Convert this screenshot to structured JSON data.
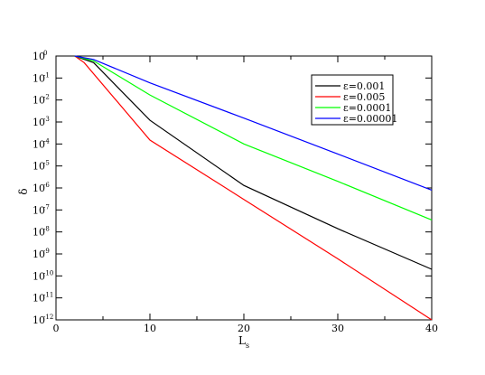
{
  "chart_data": {
    "type": "line",
    "xlabel": "L",
    "xlabel_sub": "s",
    "ylabel": "δ",
    "xlim": [
      0,
      40
    ],
    "ylim": [
      1e-12,
      1
    ],
    "yscale": "log",
    "xticks": [
      0,
      10,
      20,
      30,
      40
    ],
    "yticks_exponents": [
      0,
      -1,
      -2,
      -3,
      -4,
      -5,
      -6,
      -7,
      -8,
      -9,
      -10,
      -11,
      -12
    ],
    "ytick_base": "10",
    "grid": false,
    "legend_position": "top-right",
    "series": [
      {
        "name": "ε=0.001",
        "color": "#000000",
        "x": [
          2,
          4,
          10,
          20,
          30,
          40
        ],
        "y": [
          1,
          0.5,
          0.0012,
          1.3e-06,
          1.4e-08,
          2e-10
        ]
      },
      {
        "name": "ε=0.005",
        "color": "#ff0000",
        "x": [
          2,
          3,
          10,
          20,
          30,
          40
        ],
        "y": [
          1,
          0.5,
          0.00015,
          3e-07,
          6e-10,
          1e-12
        ]
      },
      {
        "name": "ε=0.0001",
        "color": "#00ff00",
        "x": [
          2,
          4,
          10,
          20,
          30,
          40
        ],
        "y": [
          1,
          0.6,
          0.017,
          0.0001,
          2e-06,
          3.5e-08
        ]
      },
      {
        "name": "ε=0.00001",
        "color": "#0000ff",
        "x": [
          2,
          4,
          10,
          20,
          30,
          40
        ],
        "y": [
          1,
          0.7,
          0.06,
          0.0015,
          3.5e-05,
          8e-07
        ]
      }
    ]
  }
}
